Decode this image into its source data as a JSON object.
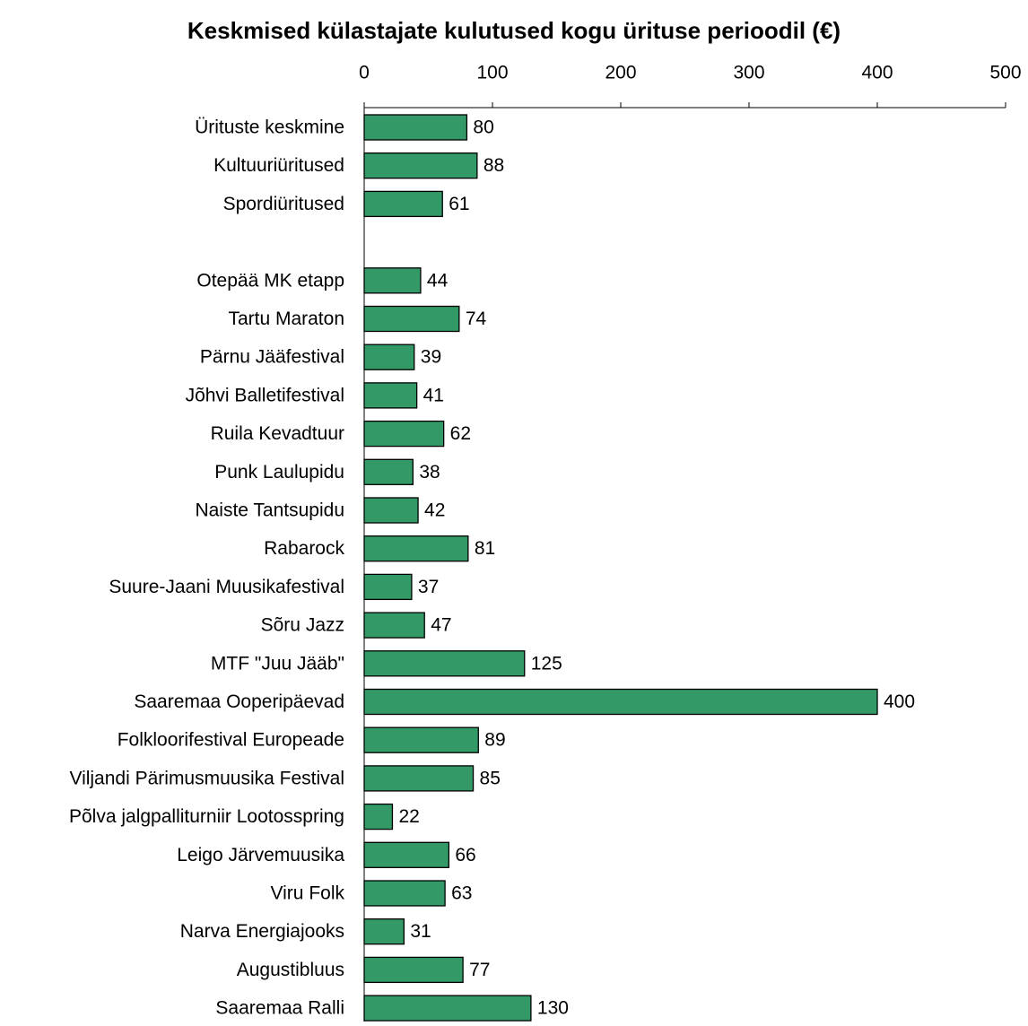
{
  "chart_data": {
    "type": "barh",
    "title": "Keskmised külastajate kulutused kogu ürituse perioodil (€)",
    "categories": [
      "Ürituste keskmine",
      "Kultuuriüritused",
      "Spordiüritused",
      null,
      "Otepää MK etapp",
      "Tartu Maraton",
      "Pärnu Jääfestival",
      "Jõhvi Balletifestival",
      "Ruila Kevadtuur",
      "Punk Laulupidu",
      "Naiste Tantsupidu",
      "Rabarock",
      "Suure-Jaani Muusikafestival",
      "Sõru Jazz",
      "MTF \"Juu Jääb\"",
      "Saaremaa Ooperipäevad",
      "Folkloorifestival Europeade",
      "Viljandi Pärimusmuusika Festival",
      "Põlva jalgpalliturniir Lootosspring",
      "Leigo Järvemuusika",
      "Viru Folk",
      "Narva Energiajooks",
      "Augustibluus",
      "Saaremaa Ralli"
    ],
    "values": [
      80,
      88,
      61,
      null,
      44,
      74,
      39,
      41,
      62,
      38,
      42,
      81,
      37,
      47,
      125,
      400,
      89,
      85,
      22,
      66,
      63,
      31,
      77,
      130
    ],
    "color": "#339966",
    "xlim": [
      0,
      500
    ],
    "xticks": [
      0,
      100,
      200,
      300,
      400,
      500
    ]
  }
}
